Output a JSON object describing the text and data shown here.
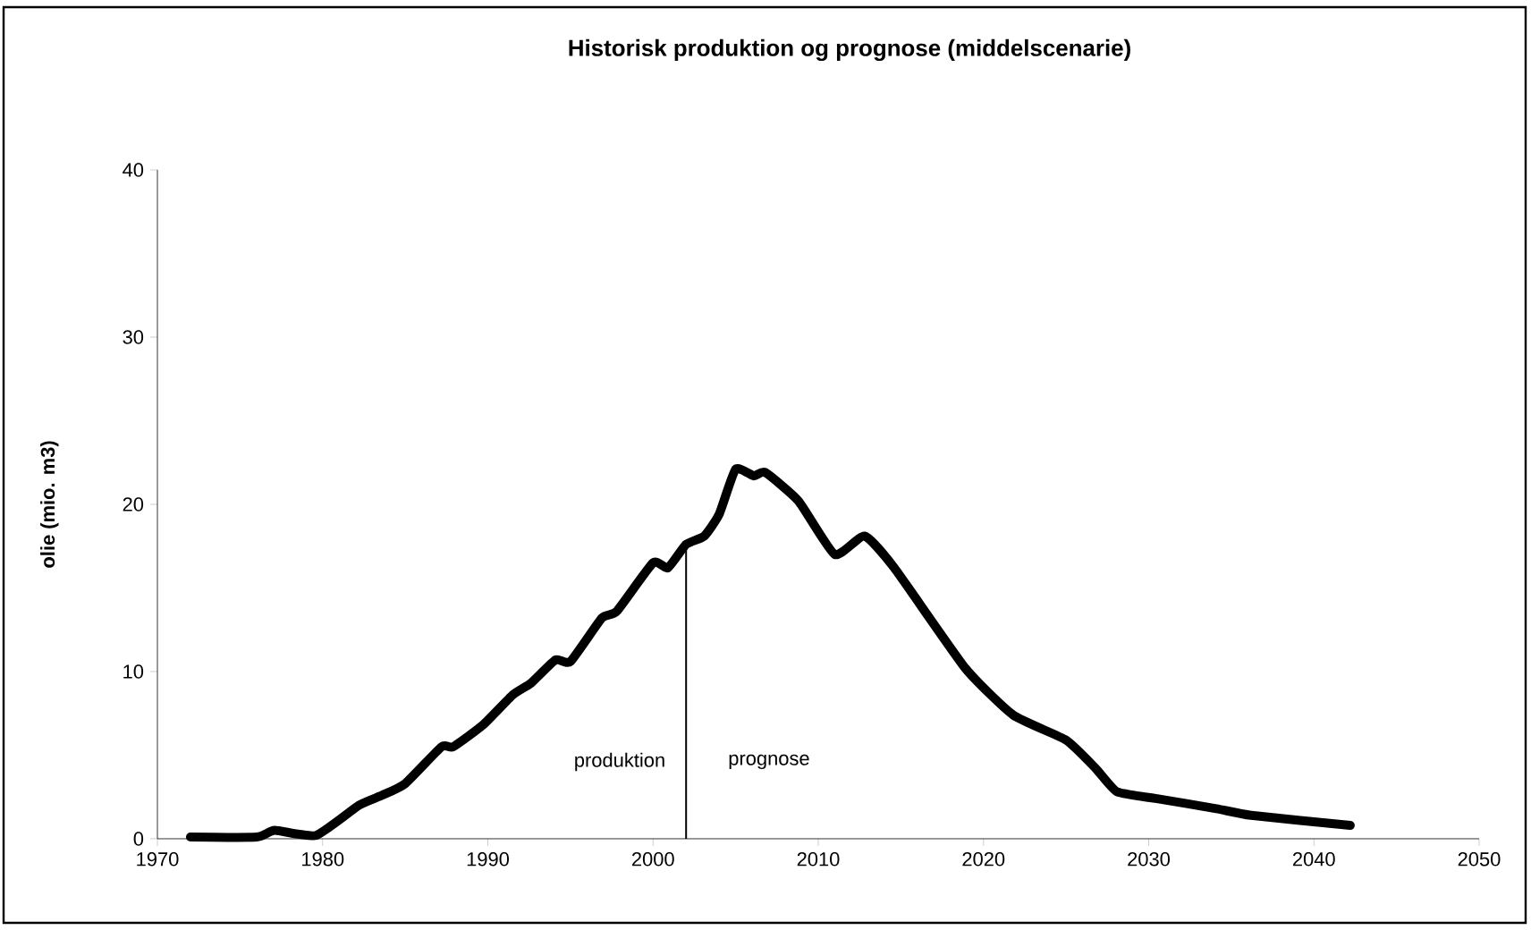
{
  "chart_data": {
    "type": "line",
    "title": "Historisk produktion og prognose (middelscenarie)",
    "ylabel": "olie (mio. m3)",
    "xlim": [
      1970,
      2050
    ],
    "ylim": [
      0,
      40
    ],
    "xticks": [
      1970,
      1980,
      1990,
      2000,
      2010,
      2020,
      2030,
      2040,
      2050
    ],
    "yticks": [
      0,
      10,
      20,
      30,
      40
    ],
    "series": [
      {
        "color": "#000000",
        "x": [
          1972,
          1976,
          1977.1,
          1979.6,
          1982.2,
          1983.6,
          1985,
          1987.2,
          1987.9,
          1989.7,
          1991.5,
          1992.6,
          1994.1,
          1995,
          1996.9,
          1997.8,
          2000,
          2000.9,
          2002,
          2003.1,
          2004,
          2005,
          2006.1,
          2006.8,
          2008.8,
          2011,
          2012.8,
          2014.6,
          2018.9,
          2021.8,
          2025,
          2026.8,
          2028.1,
          2030.5,
          2034.1,
          2036.2,
          2042.2
        ],
        "values": [
          0.1,
          0.1,
          0.5,
          0.2,
          2.0,
          2.6,
          3.3,
          5.5,
          5.5,
          6.8,
          8.6,
          9.3,
          10.7,
          10.6,
          13.2,
          13.6,
          16.5,
          16.2,
          17.6,
          18.1,
          19.4,
          22.1,
          21.7,
          21.9,
          20.2,
          17.0,
          18.1,
          16.2,
          10.2,
          7.4,
          5.9,
          4.2,
          2.8,
          2.4,
          1.8,
          1.4,
          0.8
        ]
      }
    ],
    "ref_lines": [
      {
        "axis": "x",
        "value": 2002,
        "color": "#000000"
      }
    ],
    "annotations": [
      "produktion",
      "prognose"
    ]
  }
}
